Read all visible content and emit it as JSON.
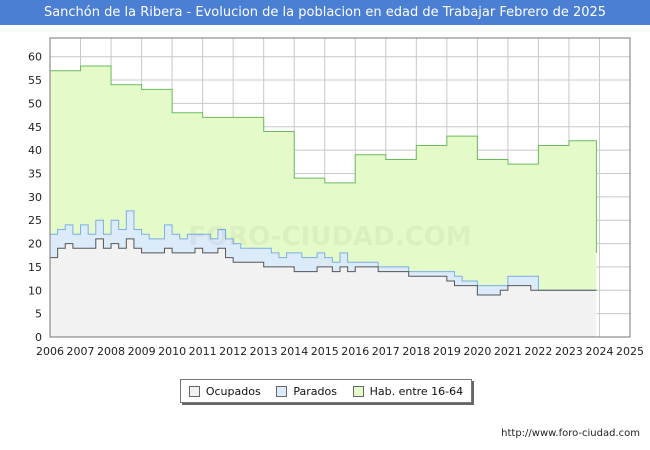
{
  "title": "Sanchón de la Ribera - Evolucion de la poblacion en edad de Trabajar Febrero de 2025",
  "source": "http://www.foro-ciudad.com",
  "watermark": "FORO-CIUDAD.COM",
  "colors": {
    "ocupados": "#f2f2f2",
    "parados": "#dcebf9",
    "hab": "#e4fbc9",
    "hab_line": "#6dbb5e",
    "par_line": "#7aaee8",
    "ocu_line": "#555555",
    "grid": "#c8c8c8",
    "title_bg": "#4a7fd3"
  },
  "legend": [
    "Ocupados",
    "Parados",
    "Hab. entre 16-64"
  ],
  "chart_data": {
    "type": "area",
    "title": "Sanchón de la Ribera - Evolucion de la poblacion en edad de Trabajar Febrero de 2025",
    "x_ticks": [
      "2006",
      "2007",
      "2008",
      "2009",
      "2010",
      "2011",
      "2012",
      "2013",
      "2014",
      "2015",
      "2016",
      "2017",
      "2018",
      "2019",
      "2020",
      "2021",
      "2022",
      "2023",
      "2024",
      "2025"
    ],
    "y_ticks": [
      "0",
      "5",
      "10",
      "15",
      "20",
      "25",
      "30",
      "35",
      "40",
      "45",
      "50",
      "55",
      "60"
    ],
    "xlim": [
      2006,
      2025
    ],
    "ylim": [
      0,
      64
    ],
    "series": [
      {
        "name": "Hab. entre 16-64",
        "points": [
          [
            2006.0,
            57
          ],
          [
            2007.0,
            58
          ],
          [
            2008.0,
            54
          ],
          [
            2009.0,
            53
          ],
          [
            2010.0,
            48
          ],
          [
            2011.0,
            47
          ],
          [
            2012.0,
            47
          ],
          [
            2013.0,
            44
          ],
          [
            2014.0,
            34
          ],
          [
            2015.0,
            33
          ],
          [
            2016.0,
            39
          ],
          [
            2017.0,
            38
          ],
          [
            2018.0,
            41
          ],
          [
            2019.0,
            43
          ],
          [
            2020.0,
            38
          ],
          [
            2021.0,
            37
          ],
          [
            2022.0,
            41
          ],
          [
            2023.0,
            42
          ],
          [
            2023.9,
            18
          ]
        ]
      },
      {
        "name": "Parados",
        "points": [
          [
            2006.0,
            5
          ],
          [
            2006.25,
            4
          ],
          [
            2006.5,
            4
          ],
          [
            2006.75,
            3
          ],
          [
            2007.0,
            5
          ],
          [
            2007.25,
            3
          ],
          [
            2007.5,
            4
          ],
          [
            2007.75,
            3
          ],
          [
            2008.0,
            5
          ],
          [
            2008.25,
            4
          ],
          [
            2008.5,
            6
          ],
          [
            2008.75,
            4
          ],
          [
            2009.0,
            4
          ],
          [
            2009.25,
            3
          ],
          [
            2009.5,
            3
          ],
          [
            2009.75,
            5
          ],
          [
            2010.0,
            4
          ],
          [
            2010.25,
            3
          ],
          [
            2010.5,
            4
          ],
          [
            2010.75,
            3
          ],
          [
            2011.0,
            4
          ],
          [
            2011.25,
            3
          ],
          [
            2011.5,
            4
          ],
          [
            2011.75,
            4
          ],
          [
            2012.0,
            4
          ],
          [
            2012.25,
            3
          ],
          [
            2012.5,
            3
          ],
          [
            2012.75,
            3
          ],
          [
            2013.0,
            4
          ],
          [
            2013.25,
            3
          ],
          [
            2013.5,
            2
          ],
          [
            2013.75,
            3
          ],
          [
            2014.0,
            4
          ],
          [
            2014.25,
            3
          ],
          [
            2014.5,
            3
          ],
          [
            2014.75,
            3
          ],
          [
            2015.0,
            2
          ],
          [
            2015.25,
            2
          ],
          [
            2015.5,
            3
          ],
          [
            2015.75,
            2
          ],
          [
            2016.0,
            1
          ],
          [
            2016.25,
            1
          ],
          [
            2016.5,
            1
          ],
          [
            2016.75,
            1
          ],
          [
            2017.0,
            1
          ],
          [
            2017.25,
            1
          ],
          [
            2017.5,
            1
          ],
          [
            2017.75,
            1
          ],
          [
            2018.0,
            1
          ],
          [
            2018.25,
            1
          ],
          [
            2018.5,
            1
          ],
          [
            2018.75,
            1
          ],
          [
            2019.0,
            2
          ],
          [
            2019.25,
            2
          ],
          [
            2019.5,
            1
          ],
          [
            2019.75,
            1
          ],
          [
            2020.0,
            2
          ],
          [
            2020.25,
            2
          ],
          [
            2020.5,
            2
          ],
          [
            2020.75,
            1
          ],
          [
            2021.0,
            2
          ],
          [
            2021.25,
            2
          ],
          [
            2021.5,
            2
          ],
          [
            2021.75,
            3
          ],
          [
            2022.0,
            0
          ]
        ]
      },
      {
        "name": "Ocupados",
        "points": [
          [
            2006.0,
            17
          ],
          [
            2006.25,
            19
          ],
          [
            2006.5,
            20
          ],
          [
            2006.75,
            19
          ],
          [
            2007.0,
            19
          ],
          [
            2007.25,
            19
          ],
          [
            2007.5,
            21
          ],
          [
            2007.75,
            19
          ],
          [
            2008.0,
            20
          ],
          [
            2008.25,
            19
          ],
          [
            2008.5,
            21
          ],
          [
            2008.75,
            19
          ],
          [
            2009.0,
            18
          ],
          [
            2009.25,
            18
          ],
          [
            2009.5,
            18
          ],
          [
            2009.75,
            19
          ],
          [
            2010.0,
            18
          ],
          [
            2010.25,
            18
          ],
          [
            2010.5,
            18
          ],
          [
            2010.75,
            19
          ],
          [
            2011.0,
            18
          ],
          [
            2011.25,
            18
          ],
          [
            2011.5,
            19
          ],
          [
            2011.75,
            17
          ],
          [
            2012.0,
            16
          ],
          [
            2012.25,
            16
          ],
          [
            2012.5,
            16
          ],
          [
            2012.75,
            16
          ],
          [
            2013.0,
            15
          ],
          [
            2013.25,
            15
          ],
          [
            2013.5,
            15
          ],
          [
            2013.75,
            15
          ],
          [
            2014.0,
            14
          ],
          [
            2014.25,
            14
          ],
          [
            2014.5,
            14
          ],
          [
            2014.75,
            15
          ],
          [
            2015.0,
            15
          ],
          [
            2015.25,
            14
          ],
          [
            2015.5,
            15
          ],
          [
            2015.75,
            14
          ],
          [
            2016.0,
            15
          ],
          [
            2016.25,
            15
          ],
          [
            2016.5,
            15
          ],
          [
            2016.75,
            14
          ],
          [
            2017.0,
            14
          ],
          [
            2017.25,
            14
          ],
          [
            2017.5,
            14
          ],
          [
            2017.75,
            13
          ],
          [
            2018.0,
            13
          ],
          [
            2018.25,
            13
          ],
          [
            2018.5,
            13
          ],
          [
            2018.75,
            13
          ],
          [
            2019.0,
            12
          ],
          [
            2019.25,
            11
          ],
          [
            2019.5,
            11
          ],
          [
            2019.75,
            11
          ],
          [
            2020.0,
            9
          ],
          [
            2020.25,
            9
          ],
          [
            2020.5,
            9
          ],
          [
            2020.75,
            10
          ],
          [
            2021.0,
            11
          ],
          [
            2021.25,
            11
          ],
          [
            2021.5,
            11
          ],
          [
            2021.75,
            10
          ],
          [
            2022.0,
            10
          ],
          [
            2022.5,
            10
          ],
          [
            2023.0,
            10
          ],
          [
            2023.5,
            10
          ],
          [
            2023.9,
            10
          ]
        ]
      }
    ]
  }
}
